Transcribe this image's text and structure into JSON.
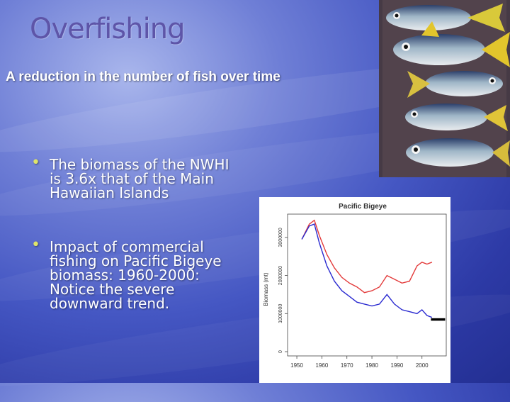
{
  "slide": {
    "title": "Overfishing",
    "subtitle": "A reduction in the number of fish over time",
    "bullets": [
      "The biomass of the NWHI is 3.6x that of the Main Hawaiian Islands",
      "Impact of commercial fishing on Pacific Bigeye biomass: 1960-2000: Notice the severe downward trend."
    ]
  },
  "image": {
    "subject": "painting-of-tuna-fish"
  },
  "colors": {
    "series_red": "#e33b3b",
    "series_blue": "#2a2ad0"
  },
  "chart_data": {
    "type": "line",
    "title": "Pacific Bigeye",
    "ylabel": "Biomass (mt)",
    "xlabel": "",
    "xlim": [
      1948,
      2008
    ],
    "ylim": [
      0,
      3500000
    ],
    "x_ticks": [
      1950,
      1960,
      1970,
      1980,
      1990,
      2000
    ],
    "y_ticks": [
      0,
      1000000,
      2000000,
      3000000
    ],
    "y_tick_labels": [
      "0",
      "1000000",
      "2000000",
      "3000000"
    ],
    "series": [
      {
        "color": "#e33b3b",
        "x": [
          1952,
          1955,
          1957,
          1959,
          1962,
          1965,
          1968,
          1971,
          1974,
          1977,
          1980,
          1983,
          1986,
          1989,
          1992,
          1995,
          1998,
          2000,
          2002,
          2004
        ],
        "y": [
          2950000,
          3350000,
          3450000,
          3050000,
          2550000,
          2200000,
          1950000,
          1800000,
          1700000,
          1550000,
          1600000,
          1700000,
          2000000,
          1900000,
          1800000,
          1850000,
          2250000,
          2350000,
          2300000,
          2350000
        ]
      },
      {
        "color": "#2a2ad0",
        "x": [
          1952,
          1955,
          1957,
          1959,
          1962,
          1965,
          1968,
          1971,
          1974,
          1977,
          1980,
          1983,
          1986,
          1989,
          1992,
          1995,
          1998,
          2000,
          2002,
          2004
        ],
        "y": [
          2950000,
          3300000,
          3350000,
          2850000,
          2250000,
          1850000,
          1600000,
          1450000,
          1300000,
          1250000,
          1200000,
          1250000,
          1500000,
          1250000,
          1100000,
          1050000,
          1000000,
          1100000,
          950000,
          900000
        ]
      }
    ],
    "markers": [
      {
        "x": 2005,
        "y": 850000,
        "shape": "black-bar"
      }
    ]
  }
}
